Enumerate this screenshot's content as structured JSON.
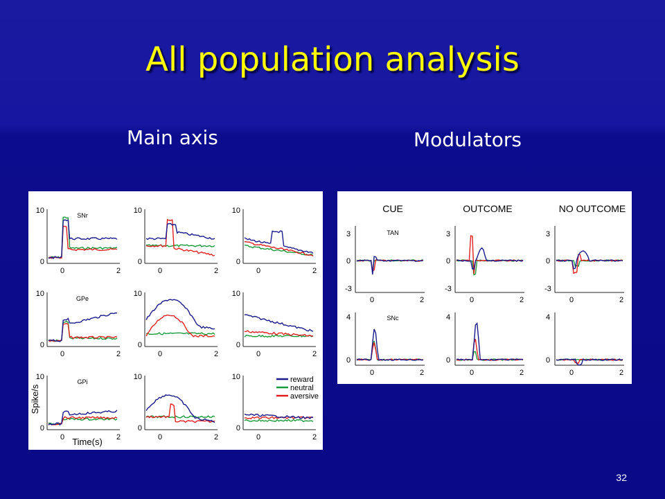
{
  "slide": {
    "title": "All population analysis",
    "subtitle_left": "Main axis",
    "subtitle_right": "Modulators",
    "page_number": "32"
  },
  "colors": {
    "reward": "#1a1a8c",
    "neutral": "#1a9a3a",
    "aversive": "#e02020",
    "title": "#ffff00"
  },
  "left_figure": {
    "y_axis_label": "Spike/s",
    "x_axis_label": "Time(s)",
    "legend": [
      "reward",
      "neutral",
      "aversive"
    ],
    "row_labels": [
      "SNr",
      "GPe",
      "GPi"
    ],
    "y_ticks": [
      "0",
      "10"
    ],
    "x_ticks": [
      "0",
      "2"
    ]
  },
  "right_figure": {
    "column_headers": [
      "CUE",
      "OUTCOME",
      "NO OUTCOME"
    ],
    "row_labels": [
      "TAN",
      "SNc"
    ],
    "row1_y_ticks": [
      "3",
      "0",
      "-3"
    ],
    "row2_y_ticks": [
      "4",
      "0"
    ],
    "x_ticks": [
      "0",
      "2"
    ]
  }
}
